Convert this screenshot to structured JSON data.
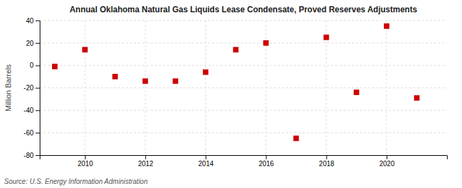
{
  "chart_data": {
    "type": "scatter",
    "title": "Annual Oklahoma Natural Gas Liquids Lease Condensate, Proved Reserves Adjustments",
    "ylabel": "Million Barrels",
    "source": "Source: U.S. Energy Information Administration",
    "x": [
      2009,
      2010,
      2011,
      2012,
      2013,
      2014,
      2015,
      2016,
      2017,
      2018,
      2019,
      2020,
      2021
    ],
    "values": [
      -1.0,
      14.0,
      -10.0,
      -14.0,
      -14.0,
      -6.0,
      14.0,
      20.0,
      -65.0,
      25.0,
      -24.0,
      35.0,
      -29.0
    ],
    "color": "#cc0000",
    "marker": "square",
    "xlim": [
      2008.5,
      2022.0
    ],
    "xticks": [
      2010,
      2012,
      2014,
      2016,
      2018,
      2020
    ],
    "ylim": [
      -80,
      40
    ],
    "yticks": [
      -80,
      -60,
      -40,
      -20,
      0,
      20,
      40
    ],
    "grid": true
  }
}
